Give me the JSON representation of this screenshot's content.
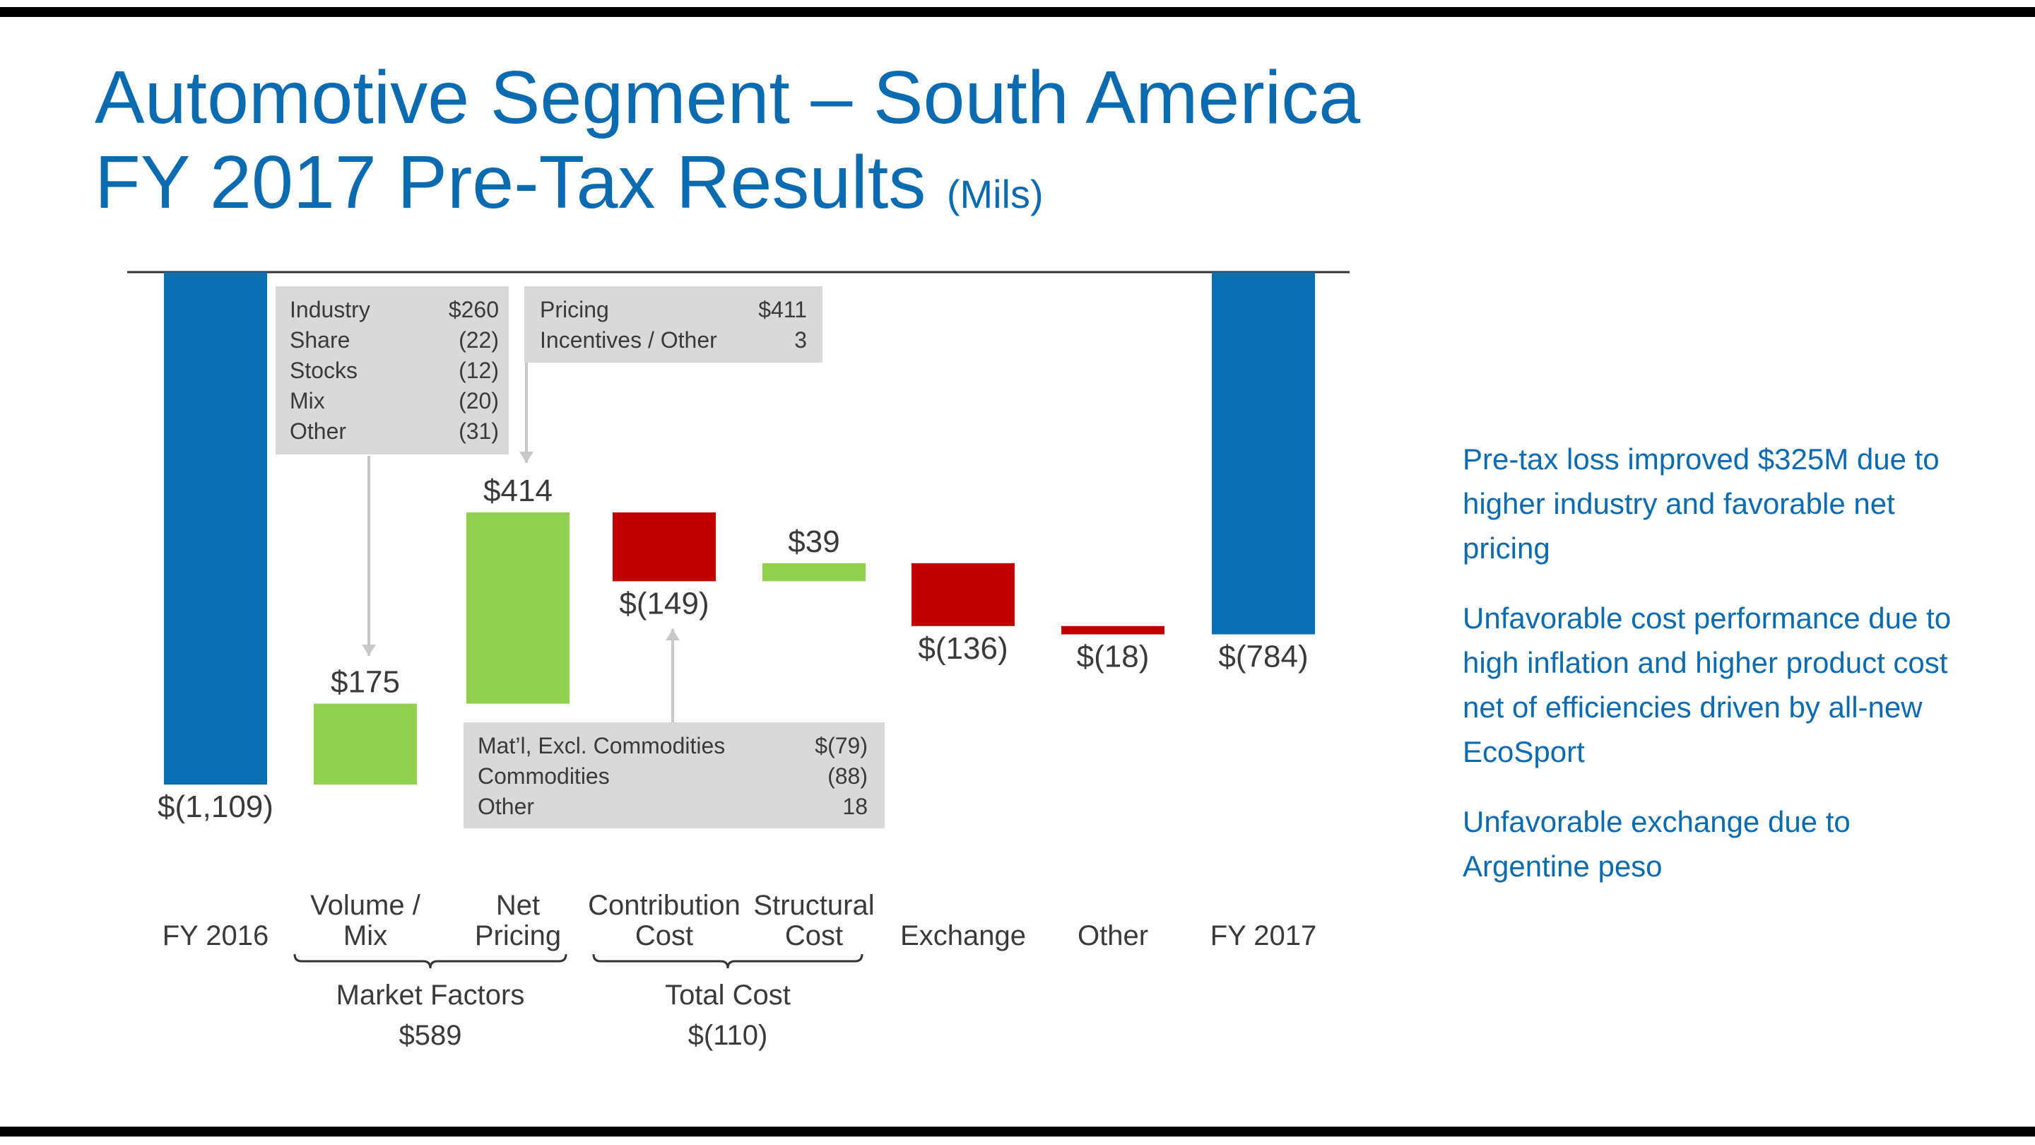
{
  "title": {
    "line1": "Automotive Segment – South America",
    "line2": "FY 2017 Pre-Tax Results",
    "units": "(Mils)"
  },
  "colors": {
    "title": "#0a6bb0",
    "total_bar": "#0a6fb2",
    "positive_bar": "#92d050",
    "negative_bar": "#c00000",
    "callout_bg": "#d9d9d9",
    "text": "#3a3a3a"
  },
  "chart_data": {
    "type": "waterfall",
    "title": "FY 2017 Pre-Tax Results (Mils)",
    "categories": [
      "FY 2016",
      "Volume / Mix",
      "Net Pricing",
      "Contribution Cost",
      "Structural Cost",
      "Exchange",
      "Other",
      "FY 2017"
    ],
    "category_lines": [
      [
        "FY 2016"
      ],
      [
        "Volume /",
        "Mix"
      ],
      [
        "Net",
        "Pricing"
      ],
      [
        "Contribution",
        "Cost"
      ],
      [
        "Structural",
        "Cost"
      ],
      [
        "Exchange"
      ],
      [
        "Other"
      ],
      [
        "FY 2017"
      ]
    ],
    "values": [
      -1109,
      175,
      414,
      -149,
      39,
      -136,
      -18,
      -784
    ],
    "kinds": [
      "total",
      "delta",
      "delta",
      "delta",
      "delta",
      "delta",
      "delta",
      "total"
    ],
    "value_labels": [
      "$(1,109)",
      "$175",
      "$414",
      "$(149)",
      "$39",
      "$(136)",
      "$(18)",
      "$(784)"
    ],
    "ylim": [
      -1109,
      0
    ],
    "groups": [
      {
        "name": "Market Factors",
        "value": "$589",
        "from": 1,
        "to": 2
      },
      {
        "name": "Total Cost",
        "value": "$(110)",
        "from": 3,
        "to": 4
      }
    ]
  },
  "callouts": {
    "market": {
      "rows": [
        {
          "label": "Industry",
          "value": "$260"
        },
        {
          "label": "Share",
          "value": "(22)"
        },
        {
          "label": "Stocks",
          "value": "(12)"
        },
        {
          "label": "Mix",
          "value": "(20)"
        },
        {
          "label": "Other",
          "value": "(31)"
        }
      ]
    },
    "pricing": {
      "rows": [
        {
          "label": "Pricing",
          "value": "$411"
        },
        {
          "label": "Incentives / Other",
          "value": "3"
        }
      ]
    },
    "cost": {
      "rows": [
        {
          "label": "Mat’l, Excl. Commodities",
          "value": "$(79)"
        },
        {
          "label": "Commodities",
          "value": "(88)"
        },
        {
          "label": "Other",
          "value": "18"
        }
      ]
    }
  },
  "bullets": [
    "Pre-tax loss improved $325M due to higher industry and favorable net pricing",
    "Unfavorable cost performance due to high inflation and higher product cost net of efficiencies driven by all-new EcoSport",
    "Unfavorable exchange due to Argentine peso"
  ]
}
